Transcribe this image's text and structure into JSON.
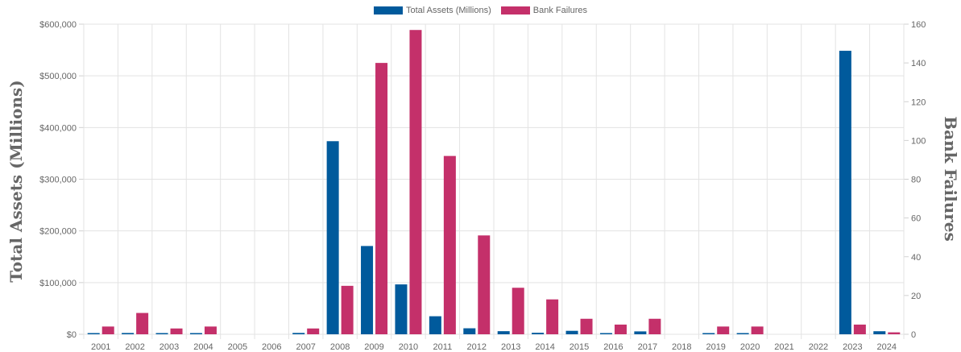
{
  "chart_data": {
    "type": "bar",
    "categories": [
      "2001",
      "2002",
      "2003",
      "2004",
      "2005",
      "2006",
      "2007",
      "2008",
      "2009",
      "2010",
      "2011",
      "2012",
      "2013",
      "2014",
      "2015",
      "2016",
      "2017",
      "2018",
      "2019",
      "2020",
      "2021",
      "2022",
      "2023",
      "2024"
    ],
    "series": [
      {
        "name": "Total Assets (Millions)",
        "axis": "left",
        "color": "#005a9c",
        "values": [
          2200,
          2500,
          500,
          200,
          0,
          0,
          2600,
          373600,
          170800,
          96500,
          34900,
          11600,
          6000,
          2900,
          6700,
          300,
          5600,
          0,
          200,
          500,
          0,
          0,
          548500,
          5900
        ]
      },
      {
        "name": "Bank Failures",
        "axis": "right",
        "color": "#c4306a",
        "values": [
          4,
          11,
          3,
          4,
          0,
          0,
          3,
          25,
          140,
          157,
          92,
          51,
          24,
          18,
          8,
          5,
          8,
          0,
          4,
          4,
          0,
          0,
          5,
          1
        ]
      }
    ],
    "y_left": {
      "label": "Total Assets (Millions)",
      "ticks": [
        "$0",
        "$100,000",
        "$200,000",
        "$300,000",
        "$400,000",
        "$500,000",
        "$600,000"
      ],
      "range": [
        0,
        600000
      ]
    },
    "y_right": {
      "label": "Bank Failures",
      "ticks": [
        "0",
        "20",
        "40",
        "60",
        "80",
        "100",
        "120",
        "140",
        "160"
      ],
      "range": [
        0,
        160
      ]
    },
    "grid": true,
    "legend_position": "top"
  }
}
